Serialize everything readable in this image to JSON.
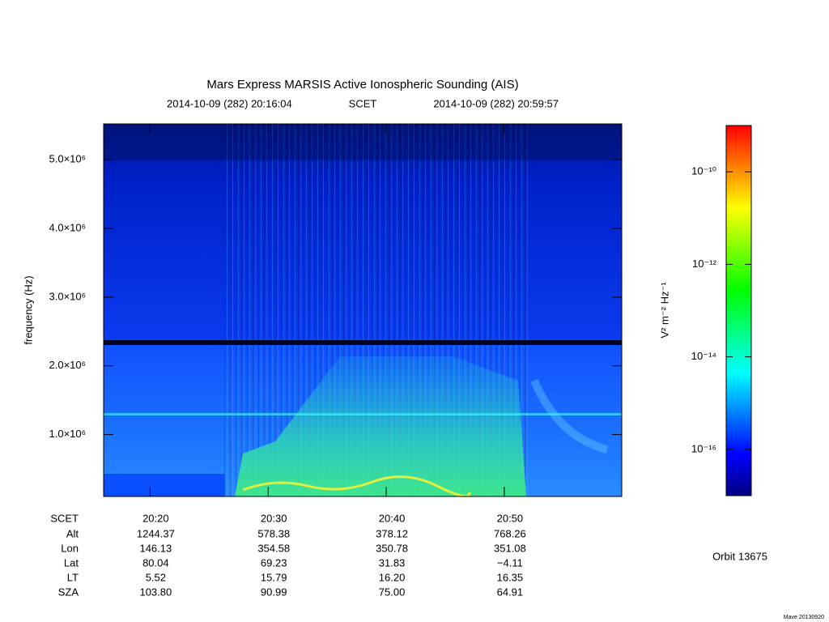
{
  "chart_data": {
    "type": "spectrogram",
    "title": "Mars Express MARSIS Active Ionospheric Sounding (AIS)",
    "time_range": {
      "start": "2014-10-09 (282) 20:16:04",
      "frame": "SCET",
      "end": "2014-10-09 (282) 20:59:57"
    },
    "ylabel": "frequency (Hz)",
    "xlim": [
      "20:16:04",
      "20:59:57"
    ],
    "xticks": [
      "20:20",
      "20:30",
      "20:40",
      "20:50"
    ],
    "ylim": [
      100000,
      5520000
    ],
    "yticks": [
      {
        "value": 1000000,
        "label": "1.0×10⁶"
      },
      {
        "value": 2000000,
        "label": "2.0×10⁶"
      },
      {
        "value": 3000000,
        "label": "3.0×10⁶"
      },
      {
        "value": 4000000,
        "label": "4.0×10⁶"
      },
      {
        "value": 5000000,
        "label": "5.0×10⁶"
      }
    ],
    "colorbar": {
      "label": "V² m⁻² Hz⁻¹",
      "scale": "log",
      "lim": [
        1e-17,
        1e-09
      ],
      "ticks": [
        {
          "value": 1e-16,
          "label": "10⁻¹⁶"
        },
        {
          "value": 1e-14,
          "label": "10⁻¹⁴"
        },
        {
          "value": 1e-12,
          "label": "10⁻¹²"
        },
        {
          "value": 1e-10,
          "label": "10⁻¹⁰"
        }
      ],
      "colormap": [
        "#000080",
        "#0000ff",
        "#0080ff",
        "#00ffff",
        "#00ff80",
        "#00ff00",
        "#80ff00",
        "#ffff00",
        "#ff8000",
        "#ff0000"
      ]
    }
  },
  "ephemeris": {
    "header": "SCET",
    "rows": [
      {
        "name": "Alt",
        "values": [
          "1244.37",
          "578.38",
          "378.12",
          "768.26"
        ]
      },
      {
        "name": "Lon",
        "values": [
          "146.13",
          "354.58",
          "350.78",
          "351.08"
        ]
      },
      {
        "name": "Lat",
        "values": [
          "80.04",
          "69.23",
          "31.83",
          "−4.11"
        ]
      },
      {
        "name": "LT",
        "values": [
          "5.52",
          "15.79",
          "16.20",
          "16.35"
        ]
      },
      {
        "name": "SZA",
        "values": [
          "103.80",
          "90.99",
          "75.00",
          "64.91"
        ]
      }
    ]
  },
  "orbit": "Orbit 13675",
  "footer": "Mave 20130920"
}
